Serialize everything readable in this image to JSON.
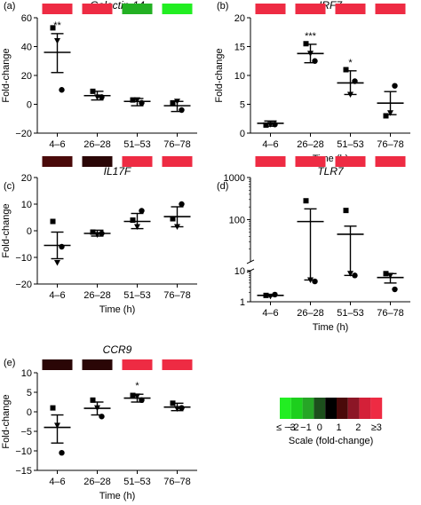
{
  "chart_data": [
    {
      "type": "scatter",
      "panel_label": "(a)",
      "title": "Galectin-14",
      "ylabel": "Fold-change",
      "xlabel": "",
      "ylim": [
        -20,
        60
      ],
      "yscale": "linear",
      "yticks": [
        -20,
        0,
        20,
        40,
        60
      ],
      "ytick_labels": [
        "−20",
        "0",
        "20",
        "40",
        "60"
      ],
      "categories": [
        "4–6",
        "26–28",
        "51–53",
        "76–78"
      ],
      "heat_colors": [
        "#ee2b43",
        "#ee2b43",
        "#23b023",
        "#22ee22"
      ],
      "significance": [
        "**",
        "",
        "",
        ""
      ],
      "groups": [
        {
          "mean": 36,
          "sem_low": 22,
          "sem_high": 49,
          "points": [
            {
              "shape": "square",
              "y": 53
            },
            {
              "shape": "triangle",
              "y": 44
            },
            {
              "shape": "circle",
              "y": 10
            }
          ]
        },
        {
          "mean": 6,
          "sem_low": 3,
          "sem_high": 9,
          "points": [
            {
              "shape": "square",
              "y": 9
            },
            {
              "shape": "triangle",
              "y": 5
            },
            {
              "shape": "circle",
              "y": 5
            }
          ]
        },
        {
          "mean": 2,
          "sem_low": -1,
          "sem_high": 4,
          "points": [
            {
              "shape": "square",
              "y": 3
            },
            {
              "shape": "triangle",
              "y": 3
            },
            {
              "shape": "circle",
              "y": 1
            }
          ]
        },
        {
          "mean": -1,
          "sem_low": -5,
          "sem_high": 2,
          "points": [
            {
              "shape": "square",
              "y": 1
            },
            {
              "shape": "triangle",
              "y": 2
            },
            {
              "shape": "circle",
              "y": -4
            }
          ]
        }
      ]
    },
    {
      "type": "scatter",
      "panel_label": "(b)",
      "title": "IRF7",
      "ylabel": "Fold-change",
      "xlabel": "Time (h)",
      "ylim": [
        0,
        20
      ],
      "yscale": "linear",
      "yticks": [
        0,
        5,
        10,
        15,
        20
      ],
      "ytick_labels": [
        "0",
        "5",
        "10",
        "15",
        "20"
      ],
      "categories": [
        "4–6",
        "26–28",
        "51–53",
        "76–78"
      ],
      "heat_colors": [
        "#ee2b43",
        "#ee2b43",
        "#ee2b43",
        "#ee2b43"
      ],
      "significance": [
        "",
        "***",
        "*",
        ""
      ],
      "groups": [
        {
          "mean": 1.7,
          "sem_low": 1.2,
          "sem_high": 2.1,
          "points": [
            {
              "shape": "square",
              "y": 1.4
            },
            {
              "shape": "triangle",
              "y": 1.5
            },
            {
              "shape": "circle",
              "y": 1.5
            }
          ]
        },
        {
          "mean": 13.8,
          "sem_low": 12.2,
          "sem_high": 15.4,
          "points": [
            {
              "shape": "square",
              "y": 15.5
            },
            {
              "shape": "triangle",
              "y": 13.8
            },
            {
              "shape": "circle",
              "y": 12.5
            }
          ]
        },
        {
          "mean": 8.7,
          "sem_low": 6.7,
          "sem_high": 10.8,
          "points": [
            {
              "shape": "square",
              "y": 11.0
            },
            {
              "shape": "triangle",
              "y": 6.7
            },
            {
              "shape": "circle",
              "y": 9.0
            }
          ]
        },
        {
          "mean": 5.2,
          "sem_low": 3.2,
          "sem_high": 7.2,
          "points": [
            {
              "shape": "square",
              "y": 3.0
            },
            {
              "shape": "triangle",
              "y": 3.5
            },
            {
              "shape": "circle",
              "y": 8.2
            }
          ]
        }
      ]
    },
    {
      "type": "scatter",
      "panel_label": "(c)",
      "title": "IL17F",
      "ylabel": "Fold-change",
      "xlabel": "Time (h)",
      "ylim": [
        -20,
        20
      ],
      "yscale": "linear",
      "yticks": [
        -20,
        -10,
        0,
        10,
        20
      ],
      "ytick_labels": [
        "−20",
        "−10",
        "0",
        "10",
        "20"
      ],
      "categories": [
        "4–6",
        "26–28",
        "51–53",
        "76–78"
      ],
      "heat_colors": [
        "#4a0a0a",
        "#2a0606",
        "#ee2b43",
        "#ee2b43"
      ],
      "significance": [
        "",
        "",
        "",
        ""
      ],
      "groups": [
        {
          "mean": -5.5,
          "sem_low": -10.5,
          "sem_high": -0.5,
          "points": [
            {
              "shape": "square",
              "y": 3.5
            },
            {
              "shape": "triangle",
              "y": -12
            },
            {
              "shape": "circle",
              "y": -6
            }
          ]
        },
        {
          "mean": -1.0,
          "sem_low": -2.0,
          "sem_high": 0.2,
          "points": [
            {
              "shape": "square",
              "y": -0.5
            },
            {
              "shape": "triangle",
              "y": -1.5
            },
            {
              "shape": "circle",
              "y": -1.0
            }
          ]
        },
        {
          "mean": 3.5,
          "sem_low": 0.8,
          "sem_high": 6.5,
          "points": [
            {
              "shape": "square",
              "y": 4.0
            },
            {
              "shape": "triangle",
              "y": 1.5
            },
            {
              "shape": "circle",
              "y": 7.5
            }
          ]
        },
        {
          "mean": 5.3,
          "sem_low": 1.5,
          "sem_high": 9.0,
          "points": [
            {
              "shape": "square",
              "y": 4.5
            },
            {
              "shape": "triangle",
              "y": 1.5
            },
            {
              "shape": "circle",
              "y": 10.0
            }
          ]
        }
      ]
    },
    {
      "type": "scatter",
      "panel_label": "(d)",
      "title": "TLR7",
      "ylabel": "",
      "xlabel": "Time (h)",
      "ylim": [
        1,
        1000
      ],
      "yscale": "log",
      "axis_break": true,
      "yticks": [
        1,
        10,
        100,
        1000
      ],
      "ytick_labels": [
        "1",
        "10",
        "100",
        "1000"
      ],
      "categories": [
        "4–6",
        "26–28",
        "51–53",
        "76–78"
      ],
      "heat_colors": [
        "#ee2b43",
        "#ee2b43",
        "#ee2b43",
        "#ee2b43"
      ],
      "significance": [
        "",
        "",
        "",
        ""
      ],
      "groups": [
        {
          "mean": 1.6,
          "sem_low": 1.5,
          "sem_high": 1.7,
          "points": [
            {
              "shape": "square",
              "y": 1.6
            },
            {
              "shape": "triangle",
              "y": 1.5
            },
            {
              "shape": "circle",
              "y": 1.7
            }
          ]
        },
        {
          "mean": 90,
          "sem_low": 5,
          "sem_high": 180,
          "points": [
            {
              "shape": "square",
              "y": 280
            },
            {
              "shape": "triangle",
              "y": 5
            },
            {
              "shape": "circle",
              "y": 4.5
            }
          ]
        },
        {
          "mean": 45,
          "sem_low": 7,
          "sem_high": 70,
          "points": [
            {
              "shape": "square",
              "y": 165
            },
            {
              "shape": "triangle",
              "y": 8
            },
            {
              "shape": "circle",
              "y": 7
            }
          ]
        },
        {
          "mean": 6,
          "sem_low": 4,
          "sem_high": 8,
          "points": [
            {
              "shape": "square",
              "y": 8
            },
            {
              "shape": "triangle",
              "y": 7
            },
            {
              "shape": "circle",
              "y": 2.5
            }
          ]
        }
      ]
    },
    {
      "type": "scatter",
      "panel_label": "(e)",
      "title": "CCR9",
      "ylabel": "Fold-change",
      "xlabel": "Time (h)",
      "ylim": [
        -15,
        10
      ],
      "yscale": "linear",
      "yticks": [
        -15,
        -10,
        -5,
        0,
        5,
        10
      ],
      "ytick_labels": [
        "−15",
        "−10",
        "−5",
        "0",
        "5",
        "10"
      ],
      "categories": [
        "4–6",
        "26–28",
        "51–53",
        "76–78"
      ],
      "heat_colors": [
        "#2a0606",
        "#2a0606",
        "#ee2b43",
        "#ee2b43"
      ],
      "significance": [
        "",
        "",
        "*",
        ""
      ],
      "groups": [
        {
          "mean": -4.0,
          "sem_low": -8.0,
          "sem_high": -0.8,
          "points": [
            {
              "shape": "square",
              "y": 1.0
            },
            {
              "shape": "triangle",
              "y": -3.5
            },
            {
              "shape": "circle",
              "y": -10.5
            }
          ]
        },
        {
          "mean": 0.9,
          "sem_low": -0.8,
          "sem_high": 2.5,
          "points": [
            {
              "shape": "square",
              "y": 3.0
            },
            {
              "shape": "triangle",
              "y": 1.0
            },
            {
              "shape": "circle",
              "y": -1.2
            }
          ]
        },
        {
          "mean": 3.5,
          "sem_low": 2.5,
          "sem_high": 4.5,
          "points": [
            {
              "shape": "square",
              "y": 4.2
            },
            {
              "shape": "triangle",
              "y": 4.0
            },
            {
              "shape": "circle",
              "y": 3.0
            }
          ]
        },
        {
          "mean": 1.2,
          "sem_low": 0.3,
          "sem_high": 2.2,
          "points": [
            {
              "shape": "square",
              "y": 2.2
            },
            {
              "shape": "triangle",
              "y": 0.8
            },
            {
              "shape": "circle",
              "y": 1.0
            }
          ]
        }
      ]
    }
  ],
  "legend": {
    "colors": [
      "#22ee22",
      "#1dcf1d",
      "#26a626",
      "#1c4f1c",
      "#000000",
      "#4a0a0a",
      "#8c1626",
      "#d42038",
      "#ee2b43"
    ],
    "tick_labels": [
      "≤ −3",
      "−2",
      "−1",
      "0",
      "1",
      "2",
      "≥3"
    ],
    "title": "Scale (fold-change)"
  }
}
